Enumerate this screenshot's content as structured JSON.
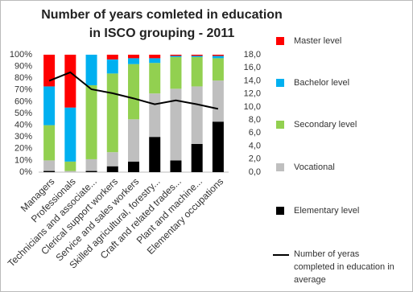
{
  "chart_data": {
    "type": "stacked_bar_line",
    "title": "Number of years comleted in education in ISCO grouping - 2011",
    "categories": [
      "Managers",
      "Professionals",
      "Technicians and associate...",
      "Clerical support workers",
      "Service and sales workers",
      "Skilled agricultural, forestry...",
      "Craft and related trades...",
      "Plant and machine...",
      "Elementary occupations"
    ],
    "series": [
      {
        "name": "Master level",
        "color": "#ff0000",
        "values": [
          27,
          45,
          0,
          4,
          3,
          3,
          1,
          1,
          1
        ]
      },
      {
        "name": "Bachelor level",
        "color": "#00b0f0",
        "values": [
          33,
          46,
          26,
          12,
          5,
          4,
          1,
          1,
          2
        ]
      },
      {
        "name": "Secondary level",
        "color": "#92d050",
        "values": [
          30,
          8,
          63,
          67,
          47,
          26,
          27,
          25,
          19
        ]
      },
      {
        "name": "Vocational",
        "color": "#bfbfbf",
        "values": [
          9,
          1,
          10,
          12,
          36,
          37,
          61,
          49,
          35
        ]
      },
      {
        "name": "Elementary level",
        "color": "#000000",
        "values": [
          1,
          0,
          1,
          5,
          9,
          30,
          10,
          24,
          43
        ]
      },
      {
        "name": "Number of yeras completed in education in average",
        "color": "#000000",
        "axis": "y2",
        "values": [
          14.0,
          15.3,
          12.7,
          12.1,
          11.3,
          10.4,
          11.0,
          10.4,
          9.7
        ]
      }
    ],
    "ylim": [
      0,
      100
    ],
    "yticks": [
      {
        "value": 0,
        "label": "0%"
      },
      {
        "value": 10,
        "label": "10%"
      },
      {
        "value": 20,
        "label": "20%"
      },
      {
        "value": 30,
        "label": "30%"
      },
      {
        "value": 40,
        "label": "40%"
      },
      {
        "value": 50,
        "label": "50%"
      },
      {
        "value": 60,
        "label": "60%"
      },
      {
        "value": 70,
        "label": "70%"
      },
      {
        "value": 80,
        "label": "80%"
      },
      {
        "value": 90,
        "label": "90%"
      },
      {
        "value": 100,
        "label": "100%"
      }
    ],
    "y2lim": [
      0,
      18
    ],
    "y2ticks": [
      {
        "value": 0,
        "label": "0,0"
      },
      {
        "value": 2,
        "label": "2,0"
      },
      {
        "value": 4,
        "label": "4,0"
      },
      {
        "value": 6,
        "label": "6,0"
      },
      {
        "value": 8,
        "label": "8,0"
      },
      {
        "value": 10,
        "label": "10,0"
      },
      {
        "value": 12,
        "label": "12,0"
      },
      {
        "value": 14,
        "label": "14,0"
      },
      {
        "value": 16,
        "label": "16,0"
      },
      {
        "value": 18,
        "label": "18,0"
      }
    ],
    "legend": "right"
  }
}
